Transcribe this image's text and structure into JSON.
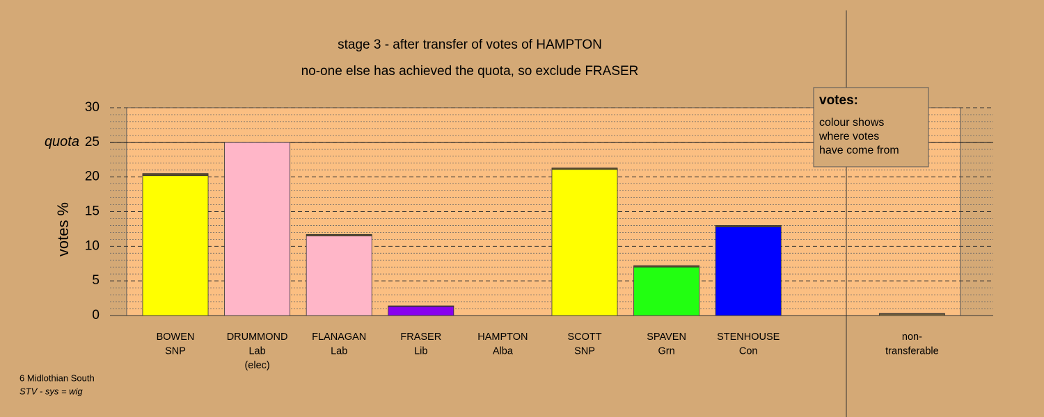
{
  "chart_data": {
    "type": "stacked_bar",
    "title": "stage 3 - after transfer of votes of HAMPTON",
    "subtitle": "no-one else has achieved the quota, so exclude FRASER",
    "y_label": "votes %",
    "categories": [
      [
        "BOWEN",
        "SNP"
      ],
      [
        "DRUMMOND",
        "Lab",
        "(elec)"
      ],
      [
        "FLANAGAN",
        "Lab"
      ],
      [
        "FRASER",
        "Lib"
      ],
      [
        "HAMPTON",
        "Alba"
      ],
      [
        "SCOTT",
        "SNP"
      ],
      [
        "SPAVEN",
        "Grn"
      ],
      [
        "STENHOUSE",
        "Con"
      ],
      null,
      [
        "non-",
        "transferable"
      ]
    ],
    "series": [
      {
        "colors": [
          "#ffff00",
          "#ffb6c8",
          "#ffb6c8",
          "#8800ee",
          "#c8a040",
          "#ffff00",
          "#22ff11",
          "#0000ff",
          null,
          "#a08040"
        ],
        "values": [
          20.2,
          25.0,
          11.5,
          1.3,
          0,
          21.1,
          7.0,
          12.8,
          null,
          0.2
        ]
      },
      {
        "color": "#5a4a2a",
        "values": [
          0.3,
          0,
          0.2,
          0.1,
          0,
          0.2,
          0.2,
          0.2,
          null,
          0.1
        ]
      }
    ],
    "ylim": [
      0,
      30
    ],
    "yticks": [
      0,
      5,
      10,
      15,
      20,
      25,
      30
    ],
    "minor_yticks": [
      1,
      2,
      3,
      4,
      6,
      7,
      8,
      9,
      11,
      12,
      13,
      14,
      16,
      17,
      18,
      19,
      21,
      22,
      23,
      24,
      26,
      27,
      28,
      29
    ],
    "quota": {
      "value": 25,
      "label": "quota"
    },
    "legend": {
      "title": "votes:",
      "lines": [
        "colour shows",
        "where votes",
        "have come from"
      ]
    },
    "footer": [
      "6 Midlothian South",
      "STV - sys = wig"
    ]
  }
}
